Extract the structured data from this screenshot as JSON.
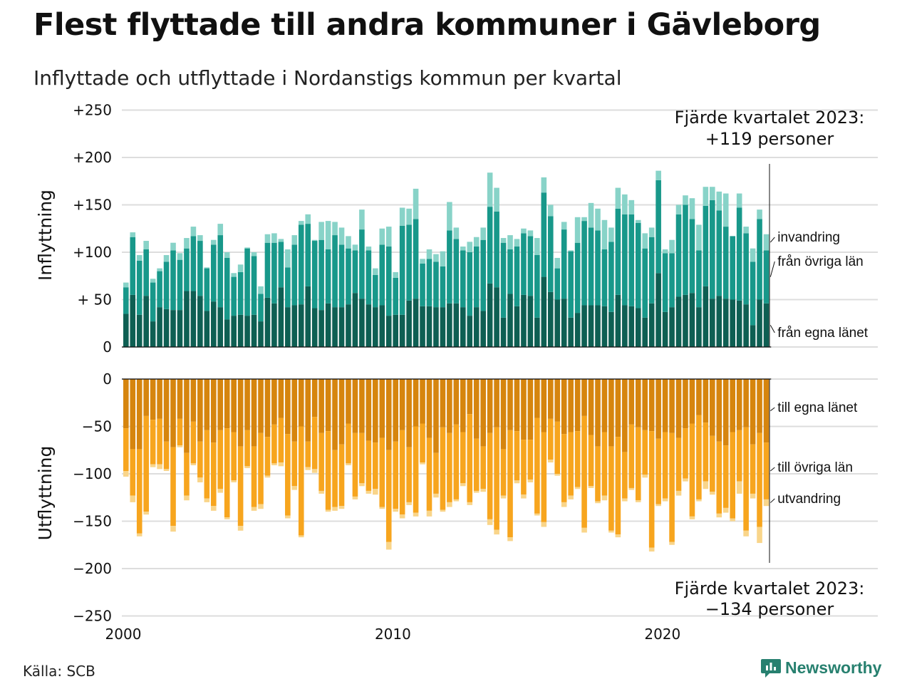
{
  "title": "Flest flyttade till andra kommuner i Gävleborg",
  "subtitle": "Inflyttade och utflyttade i Nordanstigs kommun per kvartal",
  "source": "Källa: SCB",
  "brand": "Newsworthy",
  "colors": {
    "in_egna": "#0e5f53",
    "in_ovriga": "#18988a",
    "in_invandring": "#88d3c8",
    "out_egna": "#d6850e",
    "out_ovriga": "#f7a51e",
    "out_utvandring": "#f9d58a",
    "grid": "#dddddd",
    "brand": "#27806f"
  },
  "chart_data": [
    {
      "type": "bar",
      "stacked": true,
      "ylabel": "Inflyttning",
      "ylim": [
        0,
        250
      ],
      "yticks": [
        0,
        50,
        100,
        150,
        200,
        250
      ],
      "ytick_labels": [
        "0",
        "+ 50",
        "+100",
        "+150",
        "+200",
        "+250"
      ],
      "xticks": [
        2000,
        2010,
        2020
      ],
      "xtick_labels": [
        "2000",
        "2010",
        "2020"
      ],
      "x_quarters": "2000Q1–2023Q4",
      "annotation": [
        "Fjärde kvartalet 2023:",
        "+119 personer"
      ],
      "series": [
        {
          "name": "från egna länet",
          "values": [
            35,
            55,
            34,
            54,
            27,
            42,
            40,
            39,
            39,
            59,
            59,
            54,
            38,
            48,
            42,
            29,
            33,
            34,
            33,
            34,
            27,
            52,
            46,
            63,
            42,
            44,
            45,
            64,
            41,
            39,
            46,
            42,
            42,
            45,
            57,
            51,
            45,
            42,
            44,
            33,
            34,
            34,
            49,
            51,
            43,
            43,
            42,
            42,
            46,
            46,
            42,
            33,
            42,
            38,
            67,
            63,
            31,
            56,
            43,
            55,
            54,
            31,
            74,
            58,
            50,
            51,
            31,
            36,
            44,
            44,
            44,
            43,
            37,
            55,
            44,
            43,
            41,
            31,
            46,
            78,
            37,
            42,
            53,
            55,
            57,
            42,
            64,
            51,
            54,
            51,
            50,
            49,
            45,
            23,
            50,
            46
          ]
        },
        {
          "name": "från övriga län",
          "values": [
            28,
            61,
            57,
            49,
            41,
            38,
            50,
            63,
            53,
            45,
            58,
            58,
            45,
            60,
            76,
            65,
            41,
            45,
            71,
            62,
            29,
            58,
            64,
            48,
            42,
            64,
            84,
            66,
            71,
            74,
            57,
            76,
            66,
            59,
            45,
            73,
            57,
            34,
            64,
            73,
            39,
            94,
            80,
            84,
            45,
            50,
            48,
            43,
            77,
            68,
            60,
            67,
            64,
            75,
            81,
            80,
            79,
            47,
            63,
            65,
            63,
            66,
            89,
            80,
            33,
            73,
            70,
            74,
            89,
            82,
            79,
            60,
            74,
            91,
            96,
            97,
            90,
            73,
            70,
            98,
            62,
            57,
            87,
            95,
            78,
            60,
            85,
            104,
            90,
            76,
            67,
            98,
            75,
            67,
            85,
            56
          ]
        },
        {
          "name": "invandring",
          "values": [
            5,
            5,
            6,
            9,
            4,
            3,
            7,
            8,
            7,
            11,
            10,
            6,
            1,
            5,
            12,
            6,
            4,
            8,
            1,
            4,
            8,
            9,
            10,
            3,
            19,
            10,
            4,
            10,
            1,
            19,
            30,
            14,
            18,
            13,
            6,
            21,
            4,
            7,
            17,
            21,
            6,
            19,
            17,
            32,
            5,
            10,
            8,
            16,
            30,
            12,
            4,
            11,
            10,
            13,
            36,
            25,
            5,
            15,
            8,
            5,
            6,
            18,
            16,
            12,
            11,
            8,
            1,
            27,
            4,
            26,
            23,
            31,
            15,
            22,
            21,
            15,
            3,
            16,
            10,
            10,
            4,
            14,
            10,
            10,
            22,
            27,
            20,
            14,
            20,
            35,
            0,
            15,
            7,
            14,
            10,
            17
          ]
        }
      ]
    },
    {
      "type": "bar",
      "stacked": true,
      "ylabel": "Utflyttning",
      "ylim": [
        -250,
        0
      ],
      "yticks": [
        0,
        -50,
        -100,
        -150,
        -200,
        -250
      ],
      "ytick_labels": [
        "0",
        "−50",
        "−100",
        "−150",
        "−200",
        "−250"
      ],
      "xticks": [
        2000,
        2010,
        2020
      ],
      "xtick_labels": [
        "2000",
        "2010",
        "2020"
      ],
      "x_quarters": "2000Q1–2023Q4",
      "annotation": [
        "Fjärde kvartalet 2023:",
        "−134 personer"
      ],
      "series": [
        {
          "name": "till egna länet",
          "values": [
            -52,
            -74,
            -74,
            -39,
            -43,
            -42,
            -66,
            -72,
            -42,
            -78,
            -45,
            -66,
            -54,
            -67,
            -54,
            -52,
            -56,
            -71,
            -54,
            -71,
            -57,
            -61,
            -48,
            -41,
            -58,
            -66,
            -50,
            -66,
            -40,
            -57,
            -55,
            -75,
            -69,
            -47,
            -57,
            -57,
            -65,
            -67,
            -62,
            -75,
            -66,
            -54,
            -72,
            -50,
            -47,
            -62,
            -78,
            -51,
            -57,
            -48,
            -56,
            -37,
            -63,
            -71,
            -57,
            -51,
            -74,
            -54,
            -55,
            -64,
            -64,
            -41,
            -56,
            -42,
            -45,
            -58,
            -56,
            -55,
            -39,
            -59,
            -71,
            -56,
            -71,
            -61,
            -77,
            -48,
            -51,
            -54,
            -55,
            -63,
            -56,
            -57,
            -62,
            -52,
            -47,
            -38,
            -46,
            -60,
            -66,
            -70,
            -56,
            -54,
            -51,
            -69,
            -57,
            -67
          ]
        },
        {
          "name": "till övriga län",
          "values": [
            -45,
            -49,
            -89,
            -101,
            -47,
            -48,
            -29,
            -83,
            -28,
            -45,
            -44,
            -38,
            -72,
            -67,
            -62,
            -94,
            -51,
            -84,
            -38,
            -64,
            -75,
            -41,
            -41,
            -47,
            -86,
            -47,
            -115,
            -27,
            -55,
            -61,
            -83,
            -60,
            -65,
            -42,
            -67,
            -53,
            -53,
            -49,
            -73,
            -97,
            -71,
            -89,
            -58,
            -91,
            -41,
            -77,
            -43,
            -87,
            -73,
            -79,
            -54,
            -93,
            -55,
            -45,
            -91,
            -108,
            -49,
            -113,
            -52,
            -58,
            -42,
            -101,
            -95,
            -43,
            -55,
            -72,
            -67,
            -59,
            -118,
            -54,
            -58,
            -67,
            -89,
            -103,
            -49,
            -67,
            -77,
            -47,
            -123,
            -69,
            -70,
            -115,
            -56,
            -53,
            -98,
            -89,
            -62,
            -59,
            -76,
            -66,
            -91,
            -54,
            -109,
            -52,
            -99,
            -60
          ]
        },
        {
          "name": "utvandring",
          "values": [
            -6,
            -7,
            -3,
            -3,
            -3,
            -5,
            -2,
            -6,
            -2,
            -5,
            -2,
            -5,
            -4,
            -5,
            -4,
            -2,
            -2,
            -5,
            -2,
            -4,
            -5,
            -2,
            -2,
            -4,
            -3,
            -4,
            -2,
            -3,
            -4,
            -3,
            -2,
            -4,
            -3,
            -2,
            -3,
            -3,
            -3,
            -6,
            -2,
            -8,
            -3,
            -4,
            -3,
            -4,
            -2,
            -6,
            -4,
            -2,
            -5,
            -2,
            -3,
            -3,
            -2,
            -3,
            -6,
            -5,
            -3,
            -4,
            -3,
            -4,
            -3,
            -2,
            -5,
            -3,
            -2,
            -5,
            -4,
            -2,
            -5,
            -2,
            -2,
            -5,
            -2,
            -3,
            -3,
            -2,
            -2,
            -3,
            -4,
            -2,
            -3,
            -3,
            -5,
            -3,
            -3,
            -2,
            -8,
            -3,
            -4,
            -5,
            -3,
            -13,
            -6,
            -5,
            -17,
            -7
          ]
        }
      ]
    }
  ]
}
